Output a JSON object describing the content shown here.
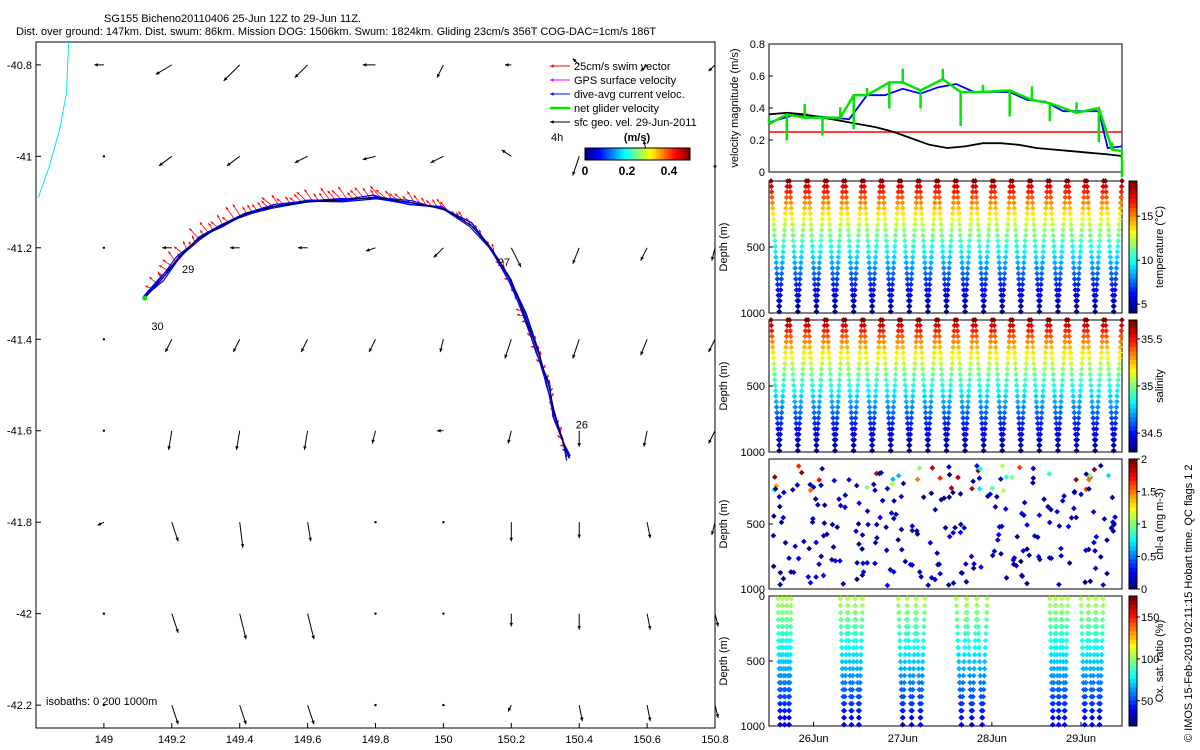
{
  "header": {
    "title": "SG155 Bicheno20110406 25-Jun 12Z to 29-Jun 11Z.",
    "subtitle": "Dist. over ground: 147km. Dist. swum: 86km. Mission DOG: 1506km. Swum: 1824km. Gliding 23cm/s 356T COG-DAC=1cm/s 186T"
  },
  "footer_note": "© IMOS 15-Feb-2019 02:11:15 Hobart time. QC flags 1  2",
  "colors": {
    "swim": "#ff0000",
    "gps": "#ff00ff",
    "dac": "#0000ff",
    "net": "#00e600",
    "sfc": "#000000",
    "isobath": "#00e5ee",
    "red_line": "#ff0000"
  },
  "chart_data": [
    {
      "type": "scatter",
      "id": "map",
      "xlim": [
        148.8,
        150.8
      ],
      "ylim": [
        -42.25,
        -40.75
      ],
      "xticks": [
        149,
        149.2,
        149.4,
        149.6,
        149.8,
        150,
        150.2,
        150.4,
        150.6,
        150.8
      ],
      "xtick_labels": [
        "149",
        "149.2",
        "149.4",
        "149.6",
        "149.8",
        "150",
        "150.2",
        "150.4",
        "150.6",
        "150.8"
      ],
      "yticks": [
        -40.8,
        -41,
        -41.2,
        -41.4,
        -41.6,
        -41.8,
        -42,
        -42.2
      ],
      "ytick_labels": [
        "-40.8",
        "-41",
        "-41.2",
        "-41.4",
        "-41.6",
        "-41.8",
        "-42",
        "-42.2"
      ],
      "legend": {
        "position": "top-right",
        "entries": [
          "25cm/s swim vector",
          "GPS surface velocity",
          "dive-avg current veloc.",
          "net glider velocity",
          "sfc geo. vel. 29-Jun-2011"
        ]
      },
      "colorbar": {
        "label": "(m/s)",
        "prefix": "4h",
        "ticks": [
          0,
          0.2,
          0.4
        ],
        "tick_labels": [
          "0",
          "0.2",
          "0.4"
        ],
        "range": [
          0,
          0.5
        ]
      },
      "isobaths_label": "isobaths: 0   200  1000m",
      "track": [
        [
          150.37,
          -41.66
        ],
        [
          150.35,
          -41.62
        ],
        [
          150.33,
          -41.57
        ],
        [
          150.31,
          -41.5
        ],
        [
          150.28,
          -41.43
        ],
        [
          150.24,
          -41.35
        ],
        [
          150.2,
          -41.27
        ],
        [
          150.14,
          -41.2
        ],
        [
          150.08,
          -41.15
        ],
        [
          150.0,
          -41.115
        ],
        [
          149.9,
          -41.1
        ],
        [
          149.8,
          -41.09
        ],
        [
          149.7,
          -41.095
        ],
        [
          149.6,
          -41.1
        ],
        [
          149.5,
          -41.11
        ],
        [
          149.42,
          -41.125
        ],
        [
          149.35,
          -41.15
        ],
        [
          149.28,
          -41.18
        ],
        [
          149.22,
          -41.22
        ],
        [
          149.17,
          -41.27
        ],
        [
          149.12,
          -41.31
        ]
      ],
      "day_labels": [
        {
          "text": "26",
          "x": 150.39,
          "y": -41.595
        },
        {
          "text": "27",
          "x": 150.16,
          "y": -41.24
        },
        {
          "text": "29",
          "x": 149.23,
          "y": -41.255
        },
        {
          "text": "30",
          "x": 149.14,
          "y": -41.38
        }
      ],
      "isobath_line": [
        [
          148.896,
          -40.75
        ],
        [
          148.89,
          -40.86
        ],
        [
          148.87,
          -40.94
        ],
        [
          148.84,
          -41.02
        ],
        [
          148.807,
          -41.09
        ]
      ],
      "field_vectors": [
        [
          [
            0.03,
            0.0
          ],
          [
            0.05,
            0.03
          ],
          [
            0.05,
            0.05
          ],
          [
            0.04,
            0.04
          ],
          [
            0.04,
            0.0
          ],
          [
            0.02,
            0.04
          ],
          [
            0.02,
            0.0
          ],
          [
            0.02,
            -0.02
          ],
          [
            0.02,
            0.02
          ],
          [
            0.02,
            0.02
          ]
        ],
        [
          [
            0.0,
            0.0
          ],
          [
            0.04,
            0.03
          ],
          [
            0.04,
            0.03
          ],
          [
            0.04,
            0.02
          ],
          [
            0.04,
            0.01
          ],
          [
            0.04,
            0.02
          ],
          [
            0.03,
            -0.02
          ],
          [
            0.02,
            0.06
          ],
          [
            0.01,
            -0.05
          ],
          [
            0.0,
            0.04
          ]
        ],
        [
          [
            0.0,
            0.0
          ],
          [
            0.03,
            0.0
          ],
          [
            0.03,
            0.0
          ],
          [
            0.03,
            0.0
          ],
          [
            0.03,
            0.01
          ],
          [
            0.03,
            0.03
          ],
          [
            -0.03,
            0.06
          ],
          [
            0.02,
            0.05
          ],
          [
            0.02,
            0.04
          ],
          [
            0.01,
            0.04
          ]
        ],
        [
          [
            0.0,
            0.0
          ],
          [
            0.02,
            0.04
          ],
          [
            0.02,
            0.04
          ],
          [
            0.02,
            0.04
          ],
          [
            0.02,
            0.04
          ],
          [
            0.01,
            0.04
          ],
          [
            0.02,
            0.06
          ],
          [
            0.02,
            0.06
          ],
          [
            0.02,
            0.05
          ],
          [
            0.02,
            0.04
          ]
        ],
        [
          [
            0.0,
            0.0
          ],
          [
            0.01,
            0.06
          ],
          [
            0.01,
            0.06
          ],
          [
            0.01,
            0.06
          ],
          [
            0.01,
            0.04
          ],
          [
            0.02,
            0.0
          ],
          [
            0.01,
            0.04
          ],
          [
            0.0,
            0.05
          ],
          [
            0.01,
            0.05
          ],
          [
            0.02,
            0.04
          ]
        ],
        [
          [
            0.02,
            0.01
          ],
          [
            -0.02,
            0.06
          ],
          [
            -0.01,
            0.08
          ],
          [
            -0.01,
            0.06
          ],
          [
            0.0,
            0.0
          ],
          [
            0.0,
            0.0
          ],
          [
            0.0,
            0.06
          ],
          [
            0.0,
            0.05
          ],
          [
            -0.01,
            0.05
          ],
          [
            0.01,
            0.04
          ]
        ],
        [
          [
            0.0,
            0.0
          ],
          [
            -0.02,
            0.06
          ],
          [
            -0.02,
            0.08
          ],
          [
            -0.02,
            0.08
          ],
          [
            0.0,
            0.0
          ],
          [
            0.0,
            0.0
          ],
          [
            0.0,
            0.04
          ],
          [
            0.0,
            0.05
          ],
          [
            -0.01,
            0.05
          ],
          [
            -0.01,
            0.04
          ]
        ],
        [
          [
            0.0,
            0.0
          ],
          [
            -0.02,
            0.06
          ],
          [
            -0.02,
            0.06
          ],
          [
            -0.02,
            0.06
          ],
          [
            0.0,
            0.0
          ],
          [
            0.0,
            0.0
          ],
          [
            0.01,
            0.02
          ],
          [
            -0.01,
            0.05
          ],
          [
            -0.01,
            0.05
          ],
          [
            -0.01,
            0.04
          ]
        ]
      ]
    },
    {
      "type": "line",
      "id": "velocity",
      "ylabel": "velocity magnitude (m/s)",
      "ylim": [
        0,
        0.8
      ],
      "yticks": [
        0,
        0.2,
        0.4,
        0.6,
        0.8
      ],
      "ytick_labels": [
        "0",
        "0.2",
        "0.4",
        "0.6",
        "0.8"
      ],
      "xlim": [
        25.5,
        29.46
      ],
      "reference_value": 0.25,
      "series": [
        {
          "color": "#0000ff",
          "x": [
            25.5,
            25.8,
            26.0,
            26.2,
            26.4,
            26.6,
            26.8,
            27.0,
            27.2,
            27.4,
            27.6,
            27.8,
            28.0,
            28.2,
            28.4,
            28.6,
            28.8,
            29.0,
            29.2,
            29.3,
            29.46
          ],
          "y": [
            0.31,
            0.36,
            0.35,
            0.34,
            0.33,
            0.48,
            0.48,
            0.52,
            0.49,
            0.53,
            0.55,
            0.5,
            0.5,
            0.5,
            0.45,
            0.44,
            0.38,
            0.38,
            0.38,
            0.15,
            0.16
          ]
        },
        {
          "color": "#000000",
          "x": [
            25.5,
            25.7,
            25.9,
            26.1,
            26.3,
            26.5,
            26.7,
            26.9,
            27.1,
            27.3,
            27.5,
            27.7,
            27.9,
            28.1,
            28.3,
            28.5,
            28.7,
            28.9,
            29.1,
            29.3,
            29.46
          ],
          "y": [
            0.36,
            0.37,
            0.36,
            0.34,
            0.32,
            0.3,
            0.28,
            0.25,
            0.21,
            0.17,
            0.15,
            0.16,
            0.18,
            0.18,
            0.17,
            0.15,
            0.14,
            0.13,
            0.12,
            0.11,
            0.1
          ]
        },
        {
          "color": "#00e600",
          "x": [
            25.5,
            25.7,
            25.9,
            26.1,
            26.3,
            26.45,
            26.6,
            26.85,
            27.0,
            27.2,
            27.45,
            27.65,
            27.9,
            28.2,
            28.45,
            28.65,
            28.95,
            29.2,
            29.35,
            29.46
          ],
          "y": [
            0.3,
            0.36,
            0.34,
            0.34,
            0.34,
            0.48,
            0.48,
            0.56,
            0.56,
            0.51,
            0.58,
            0.5,
            0.5,
            0.51,
            0.45,
            0.43,
            0.37,
            0.4,
            0.14,
            0.13
          ]
        }
      ]
    },
    {
      "type": "scatter",
      "id": "temperature",
      "ylabel": "Depth (m)",
      "yticks": [
        500,
        1000
      ],
      "ytick_labels": [
        "500",
        "1000"
      ],
      "ylim": [
        0,
        1000
      ],
      "colorbar": {
        "label": "temperature (°C)",
        "ticks": [
          5,
          10,
          15
        ],
        "tick_labels": [
          "5",
          "10",
          "15"
        ],
        "range": [
          4,
          19
        ]
      },
      "dives": 19,
      "max_depth": 1000
    },
    {
      "type": "scatter",
      "id": "salinity",
      "ylabel": "Depth (m)",
      "yticks": [
        500,
        1000
      ],
      "ytick_labels": [
        "500",
        "1000"
      ],
      "ylim": [
        0,
        1000
      ],
      "colorbar": {
        "label": "salinity",
        "ticks": [
          34.5,
          35,
          35.5
        ],
        "tick_labels": [
          "34.5",
          "35",
          "35.5"
        ],
        "range": [
          34.3,
          35.7
        ]
      },
      "dives": 19,
      "max_depth": 1000
    },
    {
      "type": "scatter",
      "id": "chla",
      "ylabel": "Depth (m)",
      "yticks": [
        500,
        1000
      ],
      "ytick_labels": [
        "500",
        "1000"
      ],
      "ylim": [
        0,
        1000
      ],
      "colorbar": {
        "label": "chl-a (mg m-3)",
        "ticks": [
          0,
          0.5,
          1,
          1.5,
          2
        ],
        "tick_labels": [
          "0",
          "0.5",
          "1",
          "1.5",
          "2"
        ],
        "range": [
          0,
          2
        ]
      },
      "dives": 19,
      "max_depth": 1000
    },
    {
      "type": "scatter",
      "id": "oxygen",
      "ylabel": "Depth (m)",
      "yticks": [
        0,
        500,
        1000
      ],
      "ytick_labels": [
        "0",
        "500",
        "1000"
      ],
      "ylim": [
        0,
        1000
      ],
      "colorbar": {
        "label": "Ox. sat. ratio (%)",
        "ticks": [
          50,
          100,
          150
        ],
        "tick_labels": [
          "50",
          "100",
          "150"
        ],
        "range": [
          20,
          175
        ]
      },
      "xticks": [
        26,
        27,
        28,
        29
      ],
      "xtick_labels": [
        "26Jun",
        "27Jun",
        "28Jun",
        "29Jun"
      ],
      "dive_groups": [
        [
          25.6,
          25.75
        ],
        [
          26.3,
          26.55
        ],
        [
          26.95,
          27.25
        ],
        [
          27.6,
          27.95
        ],
        [
          28.65,
          28.85
        ],
        [
          29.0,
          29.25
        ]
      ]
    }
  ]
}
